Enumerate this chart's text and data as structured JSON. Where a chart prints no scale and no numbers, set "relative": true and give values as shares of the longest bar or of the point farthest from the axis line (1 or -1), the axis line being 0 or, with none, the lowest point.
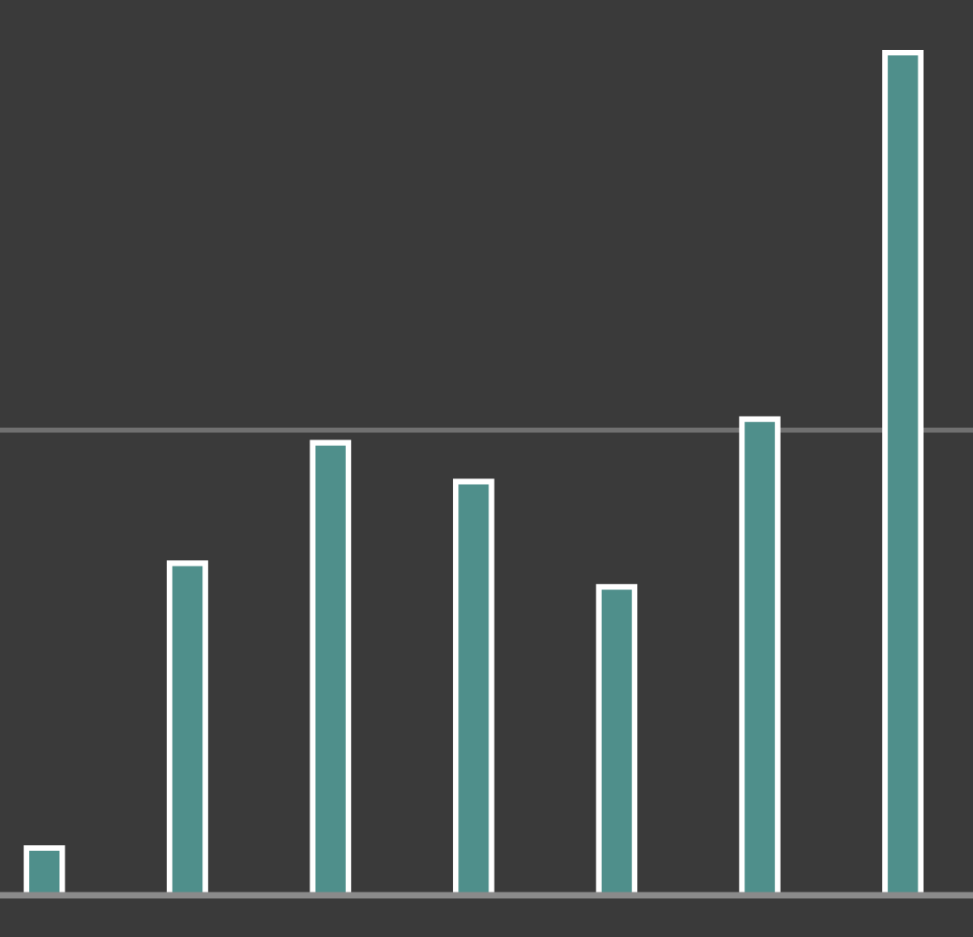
{
  "chart_data": {
    "type": "bar",
    "relative": true,
    "categories": [
      null,
      null,
      null,
      null,
      null,
      null,
      null
    ],
    "series": [
      {
        "color": "#4f8f8b",
        "values": [
          0.056,
          0.394,
          0.537,
          0.491,
          0.366,
          0.565,
          1.0
        ]
      }
    ],
    "ref_lines": [
      {
        "axis": "y",
        "value": 0.552,
        "color": "#707070"
      }
    ],
    "legend": false
  }
}
